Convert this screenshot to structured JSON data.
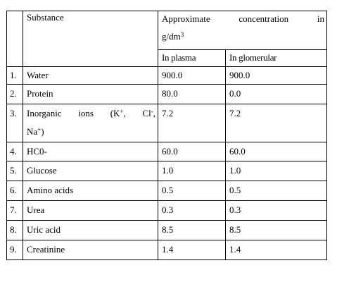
{
  "header": {
    "substance": "Substance",
    "approx_words": [
      "Approximate",
      "concentration",
      "in"
    ],
    "unit_base": "g/dm",
    "unit_exp": "3",
    "plasma": "In plasma",
    "glomerular": "In glomerular"
  },
  "rows": [
    {
      "no": "1.",
      "substance": "Water",
      "plasma": "900.0",
      "glomerular": "900.0"
    },
    {
      "no": "2.",
      "substance": "Protein",
      "plasma": "80.0",
      "glomerular": "0.0"
    },
    {
      "no": "3.",
      "substance_words": [
        "Inorganic",
        "ions",
        "(K",
        "Cl",
        "Na"
      ],
      "substance_sups": [
        "+",
        "-",
        "+"
      ],
      "plasma": "7.2",
      "glomerular": "7.2"
    },
    {
      "no": "4.",
      "substance": "HC0-",
      "plasma": "60.0",
      "glomerular": "60.0"
    },
    {
      "no": "5.",
      "substance": "Glucose",
      "plasma": "1.0",
      "glomerular": "1.0"
    },
    {
      "no": "6.",
      "substance": "Amino acids",
      "plasma": "0.5",
      "glomerular": "0.5"
    },
    {
      "no": "7.",
      "substance": "Urea",
      "plasma": "0.3",
      "glomerular": "0.3"
    },
    {
      "no": "8.",
      "substance": "Uric acid",
      "plasma": "8.5",
      "glomerular": "8.5"
    },
    {
      "no": "9.",
      "substance": "Creatinine",
      "plasma": "1.4",
      "glomerular": "1.4"
    }
  ]
}
